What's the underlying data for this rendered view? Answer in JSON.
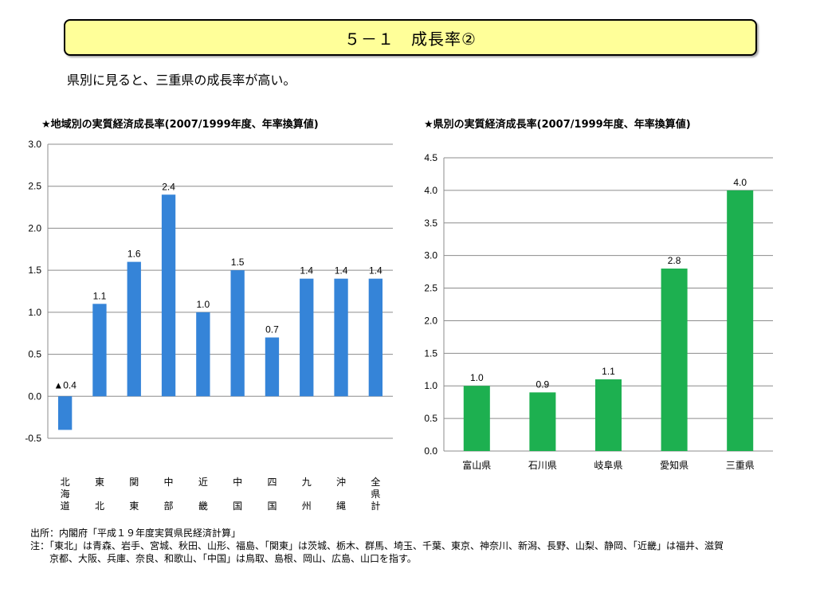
{
  "header": {
    "title": "５－１　成長率②",
    "subtitle": "県別に見ると、三重県の成長率が高い。"
  },
  "colors": {
    "title_bg": "#ffff99",
    "region_bar": "#3584d8",
    "pref_bar": "#1db050"
  },
  "chart_data": [
    {
      "type": "bar",
      "title": "★地域別の実質経済成長率(2007/1999年度、年率換算値)",
      "categories": [
        "北海道",
        "東北",
        "関東",
        "中部",
        "近畿",
        "中国",
        "四国",
        "九州",
        "沖縄",
        "全県計"
      ],
      "values": [
        -0.4,
        1.1,
        1.6,
        2.4,
        1.0,
        1.5,
        0.7,
        1.4,
        1.4,
        1.4
      ],
      "value_labels": [
        "▲0.4",
        "1.1",
        "1.6",
        "2.4",
        "1.0",
        "1.5",
        "0.7",
        "1.4",
        "1.4",
        "1.4"
      ],
      "ylim": [
        -0.5,
        3.0
      ],
      "yticks": [
        "-0.5",
        "0.0",
        "0.5",
        "1.0",
        "1.5",
        "2.0",
        "2.5",
        "3.0"
      ],
      "grid": true,
      "category_labels_vertical": true
    },
    {
      "type": "bar",
      "title": "★県別の実質経済成長率(2007/1999年度、年率換算値)",
      "categories": [
        "富山県",
        "石川県",
        "岐阜県",
        "愛知県",
        "三重県"
      ],
      "values": [
        1.0,
        0.9,
        1.1,
        2.8,
        4.0
      ],
      "value_labels": [
        "1.0",
        "0.9",
        "1.1",
        "2.8",
        "4.0"
      ],
      "ylim": [
        0.0,
        4.5
      ],
      "yticks": [
        "0.0",
        "0.5",
        "1.0",
        "1.5",
        "2.0",
        "2.5",
        "3.0",
        "3.5",
        "4.0",
        "4.5"
      ],
      "grid": true,
      "category_labels_vertical": false
    }
  ],
  "notes": {
    "source": "出所：内閣府「平成１９年度実質県民経済計算」",
    "note_line1": "注：「東北」は青森、岩手、宮城、秋田、山形、福島、「関東」は茨城、栃木、群馬、埼玉、千葉、東京、神奈川、新潟、長野、山梨、静岡、「近畿」は福井、滋賀",
    "note_line2": "京都、大阪、兵庫、奈良、和歌山、「中国」は鳥取、島根、岡山、広島、山口を指す。"
  }
}
